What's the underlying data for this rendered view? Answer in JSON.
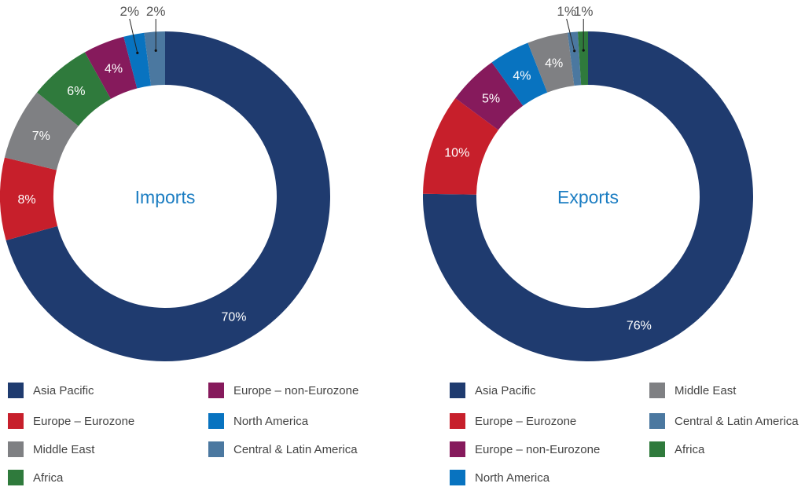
{
  "colors": {
    "Asia Pacific": "#1f3b6f",
    "Europe – Eurozone": "#c71f2b",
    "Middle East": "#7f8083",
    "Africa": "#2f7a3c",
    "Europe – non-Eurozone": "#861a5c",
    "North America": "#0873c0",
    "Central & Latin America": "#4b78a0",
    "title": "#1b7dc2"
  },
  "chart_data": [
    {
      "type": "pie",
      "donut": true,
      "title": "Imports",
      "categories": [
        "Asia Pacific",
        "Europe – Eurozone",
        "Middle East",
        "Africa",
        "Europe – non-Eurozone",
        "North America",
        "Central & Latin America"
      ],
      "values": [
        70,
        8,
        7,
        6,
        4,
        2,
        2
      ],
      "data_labels": [
        "70%",
        "8%",
        "7%",
        "6%",
        "4%",
        "2%",
        "2%"
      ],
      "legend": [
        "Asia Pacific",
        "Europe – non-Eurozone",
        "Europe – Eurozone",
        "North America",
        "Middle East",
        "Central & Latin America",
        "Africa"
      ],
      "legend_placement": "bottom"
    },
    {
      "type": "pie",
      "donut": true,
      "title": "Exports",
      "categories": [
        "Asia Pacific",
        "Europe – Eurozone",
        "Europe – non-Eurozone",
        "North America",
        "Middle East",
        "Central & Latin America",
        "Africa"
      ],
      "values": [
        76,
        10,
        5,
        4,
        4,
        1,
        1
      ],
      "data_labels": [
        "76%",
        "10%",
        "5%",
        "4%",
        "4%",
        "1%",
        "1%"
      ],
      "legend": [
        "Asia Pacific",
        "Middle East",
        "Europe – Eurozone",
        "Central & Latin America",
        "Europe – non-Eurozone",
        "Africa",
        "North America"
      ],
      "legend_placement": "bottom"
    }
  ]
}
